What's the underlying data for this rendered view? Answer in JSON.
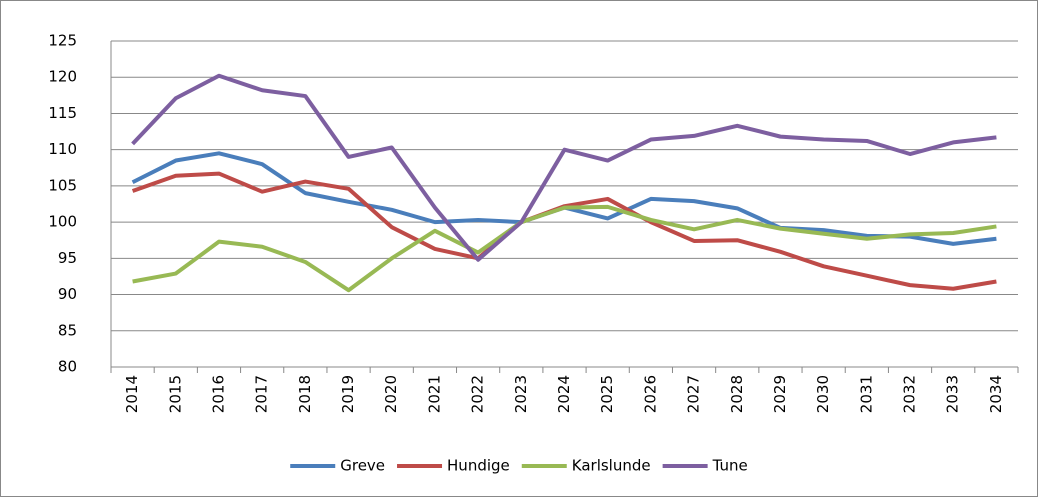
{
  "chart_data": {
    "type": "line",
    "categories": [
      "2014",
      "2015",
      "2016",
      "2017",
      "2018",
      "2019",
      "2020",
      "2021",
      "2022",
      "2023",
      "2024",
      "2025",
      "2026",
      "2027",
      "2028",
      "2029",
      "2030",
      "2031",
      "2032",
      "2033",
      "2034"
    ],
    "series": [
      {
        "name": "Greve",
        "color": "#4a7ebb",
        "values": [
          105.5,
          108.5,
          109.5,
          108,
          104,
          102.8,
          101.7,
          100,
          100.3,
          100,
          102,
          100.5,
          103.2,
          102.9,
          101.9,
          99.2,
          98.9,
          98.1,
          98,
          97,
          97.7
        ]
      },
      {
        "name": "Hundige",
        "color": "#be4b48",
        "values": [
          104.3,
          106.4,
          106.7,
          104.2,
          105.6,
          104.6,
          99.3,
          96.3,
          95,
          100,
          102.2,
          103.2,
          100,
          97.4,
          97.5,
          95.9,
          93.9,
          92.6,
          91.3,
          90.8,
          91.8
        ]
      },
      {
        "name": "Karlslunde",
        "color": "#98b954",
        "values": [
          91.8,
          92.9,
          97.3,
          96.6,
          94.5,
          90.6,
          95,
          98.8,
          95.8,
          100,
          102,
          102.1,
          100.3,
          99,
          100.3,
          99.1,
          98.4,
          97.7,
          98.3,
          98.5,
          99.4
        ]
      },
      {
        "name": "Tune",
        "color": "#7d5fa0",
        "values": [
          110.8,
          117.1,
          120.2,
          118.2,
          117.4,
          109,
          110.3,
          102,
          94.8,
          100,
          110,
          108.5,
          111.4,
          111.9,
          113.3,
          111.8,
          111.4,
          111.2,
          109.4,
          111,
          111.7
        ]
      }
    ],
    "ylim": [
      80,
      125
    ],
    "yticks": [
      80,
      85,
      90,
      95,
      100,
      105,
      110,
      115,
      120,
      125
    ],
    "grid": true,
    "legend": "bottom"
  }
}
